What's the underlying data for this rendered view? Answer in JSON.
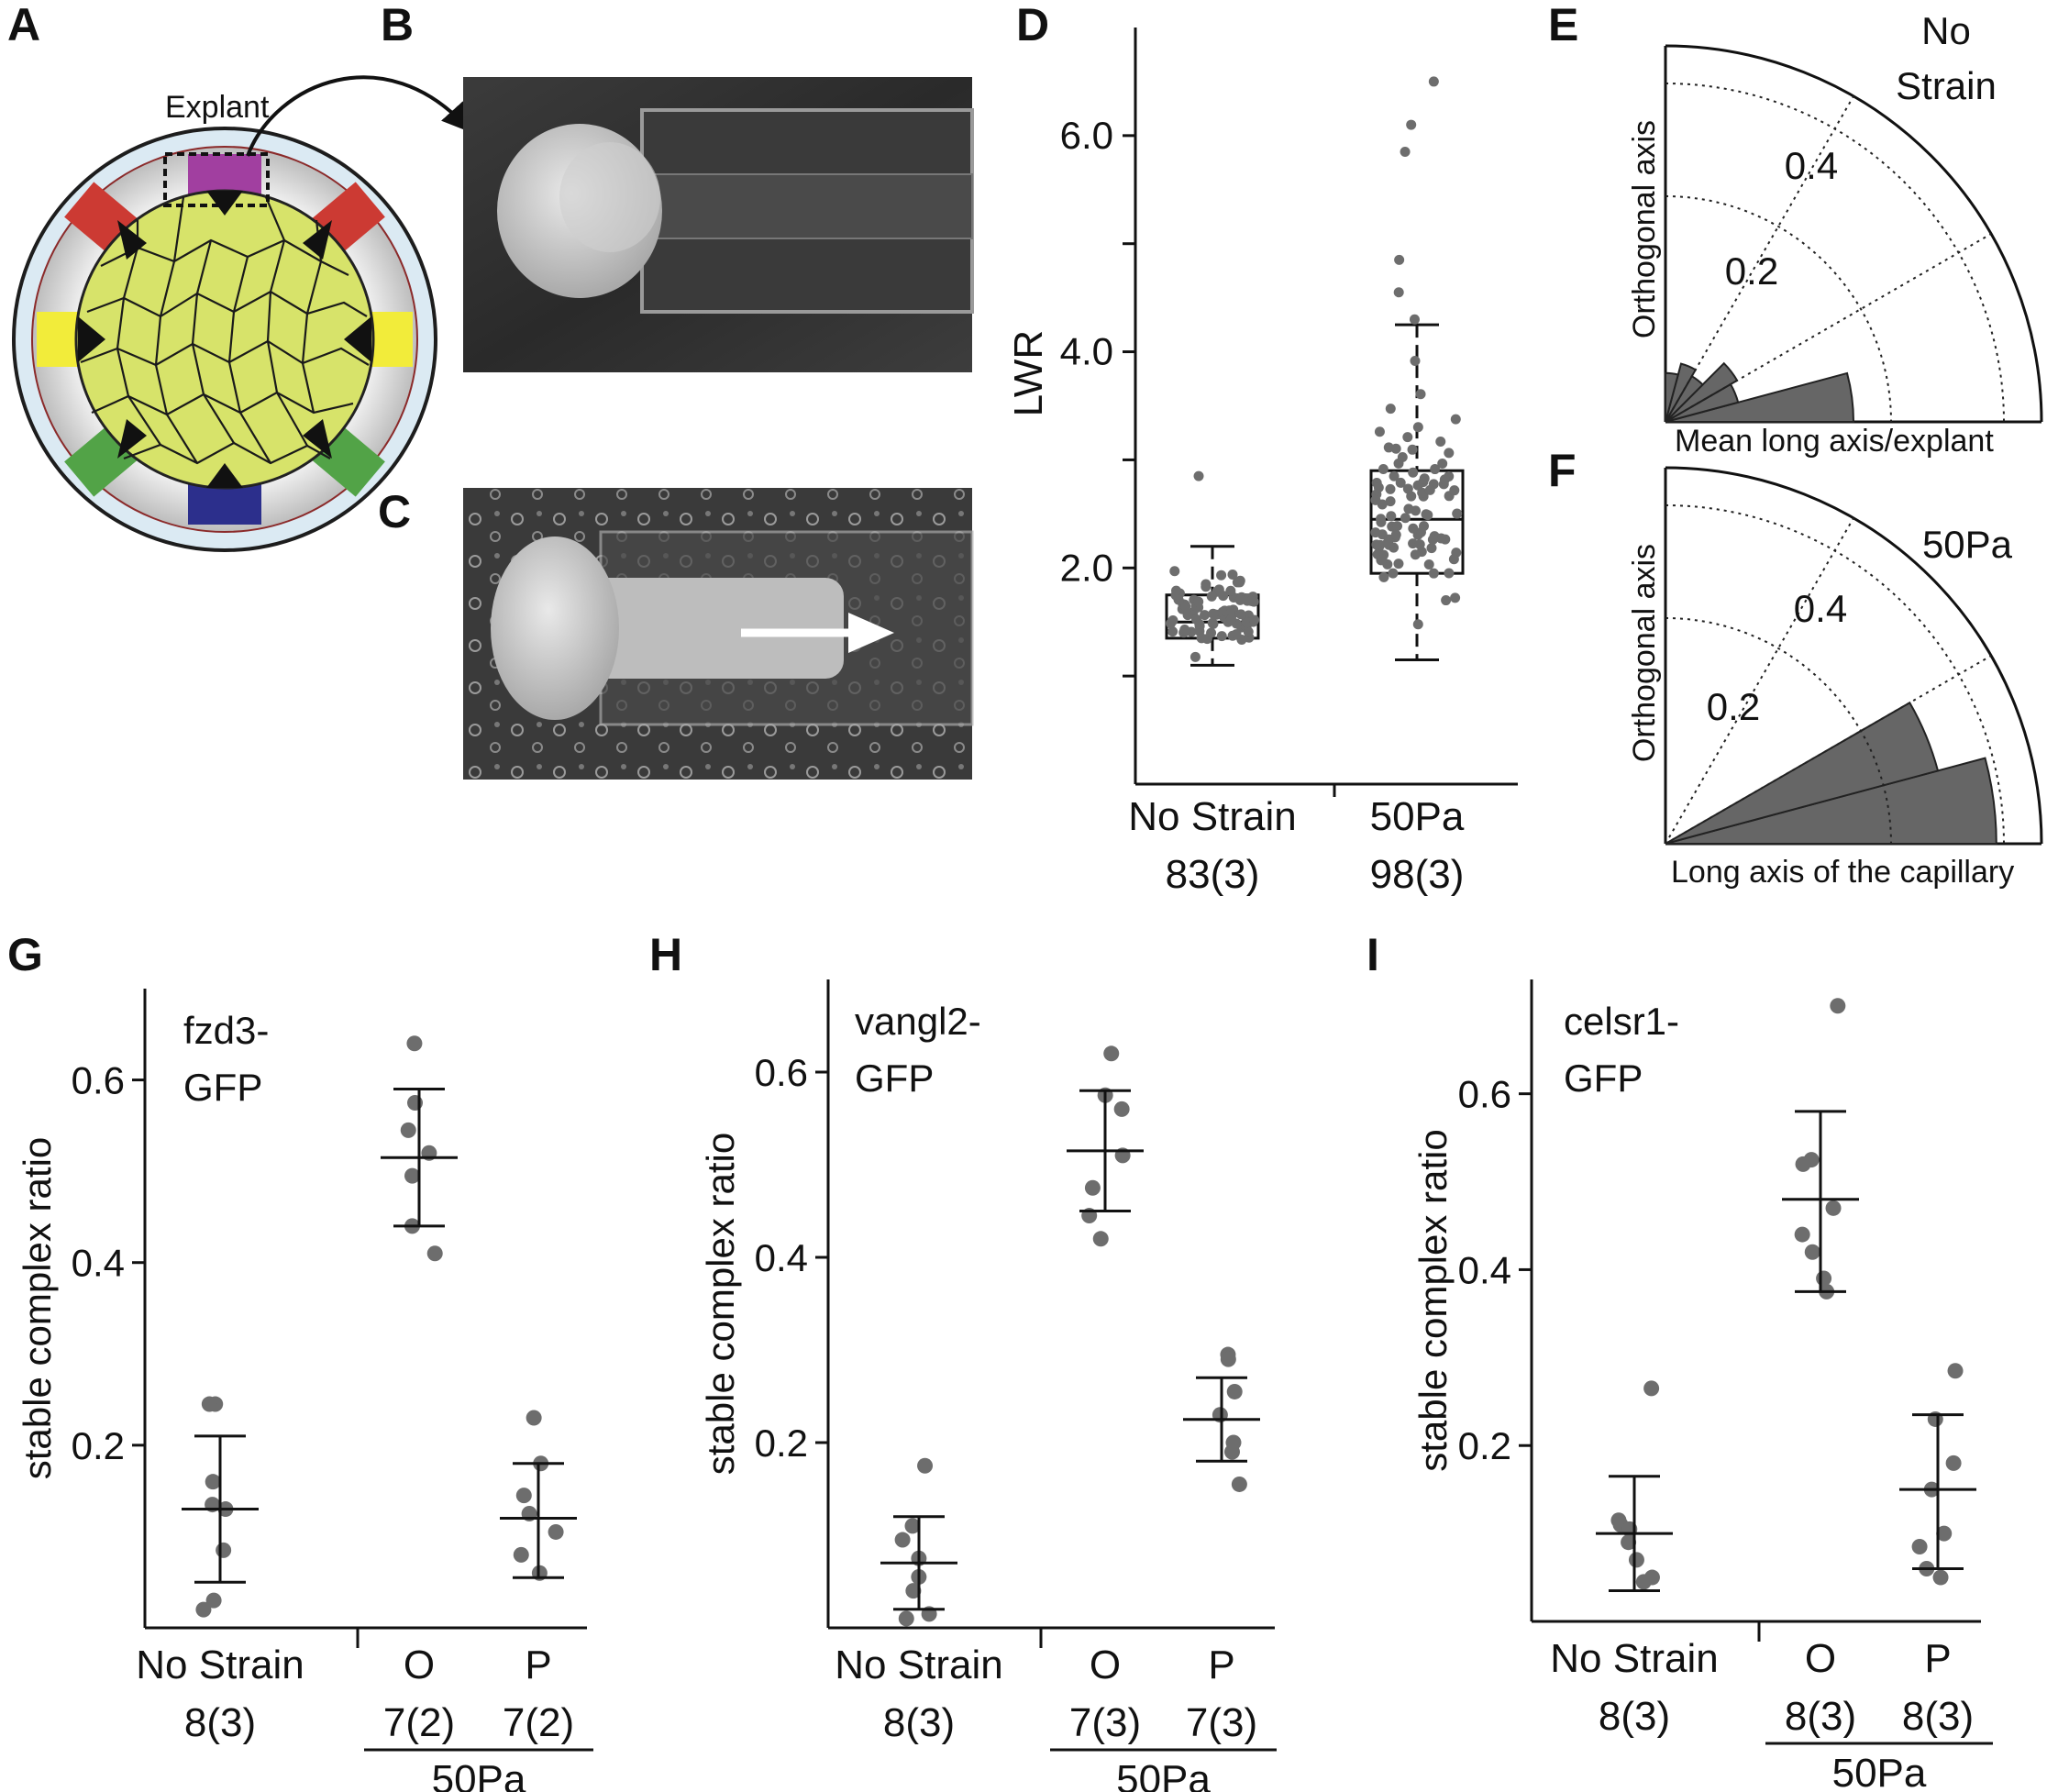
{
  "panels": {
    "A": "A",
    "B": "B",
    "C": "C",
    "D": "D",
    "E": "E",
    "F": "F",
    "G": "G",
    "H": "H",
    "I": "I"
  },
  "panel_a": {
    "explant_label": "Explant"
  },
  "colors": {
    "points": "#6d6d6d",
    "rose": "#666666",
    "cells": "#d7e36a",
    "purple": "#a13fa0",
    "red": "#cc3a33",
    "yellow": "#f2ec3a",
    "green": "#52a347",
    "blue": "#2c2f8c",
    "ring": "#dbeaf3"
  },
  "chart_data": [
    {
      "id": "D",
      "type": "scatter",
      "ylabel": "LWR",
      "yticks": [
        "2.0",
        "4.0",
        "6.0"
      ],
      "ylim": [
        0.0,
        7.0
      ],
      "groups": [
        {
          "name": "No Strain",
          "n": "83(3)",
          "box": {
            "min": 1.1,
            "q1": 1.35,
            "median": 1.5,
            "q3": 1.75,
            "max": 2.2
          },
          "outliers": [
            2.85
          ],
          "count": 83,
          "center": 1.5
        },
        {
          "name": "50Pa",
          "n": "98(3)",
          "box": {
            "min": 1.15,
            "q1": 1.95,
            "median": 2.45,
            "q3": 2.9,
            "max": 4.25
          },
          "outliers": [
            4.3,
            4.55,
            4.85,
            5.85,
            6.1,
            6.5
          ],
          "count": 98,
          "center": 2.5
        }
      ]
    },
    {
      "id": "E",
      "type": "polar-bar",
      "title": [
        "No",
        "Strain"
      ],
      "radial_labels": [
        "0.2",
        "0.4"
      ],
      "x_axis_label": "Mean long axis/explant",
      "y_axis_label": "Orthogonal axis",
      "bins_deg": [
        0,
        15,
        30,
        45,
        60,
        75
      ],
      "values": [
        0.5,
        0.2,
        0.22,
        0.14,
        0.16,
        0.13
      ]
    },
    {
      "id": "F",
      "type": "polar-bar",
      "title": [
        "50Pa"
      ],
      "radial_labels": [
        "0.2",
        "0.4"
      ],
      "x_axis_label": "Long axis of the capillary",
      "y_axis_label": "Orthogonal axis",
      "bins_deg": [
        0,
        15,
        30,
        45,
        60,
        75
      ],
      "values": [
        0.88,
        0.75,
        0.0,
        0.0,
        0.0,
        0.0
      ]
    },
    {
      "id": "G",
      "type": "scatter",
      "title": [
        "fzd3-",
        "GFP"
      ],
      "ylabel": "stable complex ratio",
      "yticks": [
        "0.2",
        "0.4",
        "0.6"
      ],
      "ylim": [
        0.0,
        0.7
      ],
      "groups": [
        {
          "name": "No Strain",
          "n": "8(3)",
          "points": [
            0.245,
            0.245,
            0.16,
            0.135,
            0.13,
            0.085,
            0.03,
            0.02
          ],
          "mean": 0.13,
          "sd_low": 0.05,
          "sd_high": 0.21
        },
        {
          "name": "O",
          "n": "7(2)",
          "points": [
            0.64,
            0.575,
            0.545,
            0.52,
            0.495,
            0.44,
            0.41
          ],
          "mean": 0.515,
          "sd_low": 0.44,
          "sd_high": 0.59
        },
        {
          "name": "P",
          "n": "7(2)",
          "points": [
            0.23,
            0.18,
            0.145,
            0.125,
            0.105,
            0.08,
            0.06
          ],
          "mean": 0.12,
          "sd_low": 0.055,
          "sd_high": 0.18
        }
      ],
      "bracket_label": "50Pa"
    },
    {
      "id": "H",
      "type": "scatter",
      "title": [
        "vangl2-",
        "GFP"
      ],
      "ylabel": "stable complex ratio",
      "yticks": [
        "0.2",
        "0.4",
        "0.6"
      ],
      "ylim": [
        0.0,
        0.7
      ],
      "groups": [
        {
          "name": "No Strain",
          "n": "8(3)",
          "points": [
            0.175,
            0.11,
            0.095,
            0.075,
            0.055,
            0.04,
            0.015,
            0.01
          ],
          "mean": 0.07,
          "sd_low": 0.02,
          "sd_high": 0.12
        },
        {
          "name": "O",
          "n": "7(3)",
          "points": [
            0.62,
            0.575,
            0.56,
            0.51,
            0.475,
            0.445,
            0.42
          ],
          "mean": 0.515,
          "sd_low": 0.45,
          "sd_high": 0.58
        },
        {
          "name": "P",
          "n": "7(3)",
          "points": [
            0.295,
            0.29,
            0.255,
            0.23,
            0.2,
            0.19,
            0.155
          ],
          "mean": 0.225,
          "sd_low": 0.18,
          "sd_high": 0.27
        }
      ],
      "bracket_label": "50Pa"
    },
    {
      "id": "I",
      "type": "scatter",
      "title": [
        "celsr1-",
        "GFP"
      ],
      "ylabel": "stable complex ratio",
      "yticks": [
        "0.2",
        "0.4",
        "0.6"
      ],
      "ylim": [
        0.0,
        0.73
      ],
      "groups": [
        {
          "name": "No Strain",
          "n": "8(3)",
          "points": [
            0.265,
            0.115,
            0.11,
            0.105,
            0.09,
            0.07,
            0.05,
            0.045
          ],
          "mean": 0.1,
          "sd_low": 0.035,
          "sd_high": 0.165
        },
        {
          "name": "O",
          "n": "8(3)",
          "points": [
            0.7,
            0.525,
            0.52,
            0.47,
            0.44,
            0.42,
            0.39,
            0.375
          ],
          "mean": 0.48,
          "sd_low": 0.375,
          "sd_high": 0.58
        },
        {
          "name": "P",
          "n": "8(3)",
          "points": [
            0.285,
            0.23,
            0.18,
            0.15,
            0.1,
            0.085,
            0.06,
            0.05
          ],
          "mean": 0.15,
          "sd_low": 0.06,
          "sd_high": 0.235
        }
      ],
      "bracket_label": "50Pa"
    }
  ]
}
